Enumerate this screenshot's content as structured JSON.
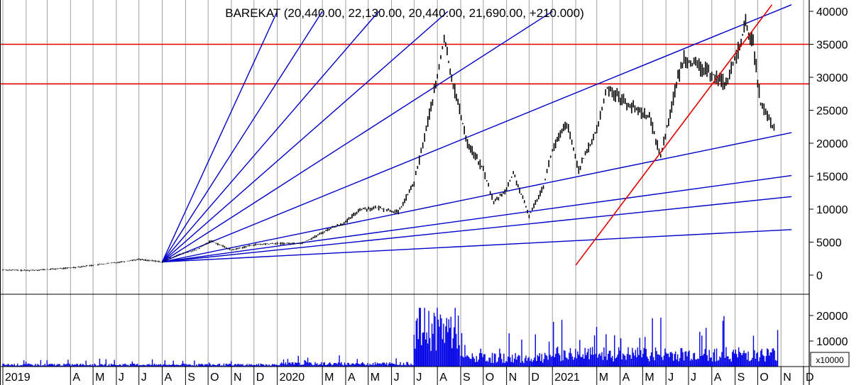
{
  "chart_data": [
    {
      "type": "candlestick",
      "title": "BAREKAT (20,440.00, 22,130.00, 20,440.00, 21,690.00, +210.000)",
      "ohlc": {
        "open": 20440.0,
        "high": 22130.0,
        "low": 20440.0,
        "close": 21690.0,
        "change": 210.0
      },
      "ylim": [
        -3000,
        41000
      ],
      "yticks": [
        0,
        5000,
        10000,
        15000,
        20000,
        25000,
        30000,
        35000,
        40000
      ],
      "ytick_labels": [
        "0",
        "5000",
        "10000",
        "15000",
        "20000",
        "25000",
        "30000",
        "35000",
        "40000"
      ],
      "grid": true,
      "horizontal_lines": [
        35000,
        29000
      ],
      "fan_anchor": {
        "date": "2019-08-01",
        "value": 2000
      },
      "fan_lines": [
        {
          "date": "2020-01-01",
          "value": 40000
        },
        {
          "date": "2020-03-01",
          "value": 40000
        },
        {
          "date": "2020-05-15",
          "value": 40000
        },
        {
          "date": "2020-08-15",
          "value": 40000
        },
        {
          "date": "2021-01-01",
          "value": 40000
        },
        {
          "date": "2021-11-15",
          "value": 41000
        },
        {
          "date": "2021-11-15",
          "value": 21600
        },
        {
          "date": "2021-11-15",
          "value": 15100
        },
        {
          "date": "2021-11-15",
          "value": 11900
        },
        {
          "date": "2021-11-15",
          "value": 6900
        }
      ],
      "red_trendline": [
        {
          "date": "2021-02-01",
          "value": 1500
        },
        {
          "date": "2021-10-20",
          "value": 41000
        }
      ],
      "series": [
        {
          "x": [
            "2019-01-01",
            "2019-02-01",
            "2019-03-01",
            "2019-04-01",
            "2019-05-01",
            "2019-06-01",
            "2019-07-01",
            "2019-08-01",
            "2019-08-20",
            "2019-09-15",
            "2019-10-05",
            "2019-11-01",
            "2019-12-01",
            "2020-01-01",
            "2020-02-01",
            "2020-02-20",
            "2020-03-10",
            "2020-04-01",
            "2020-04-20",
            "2020-05-15",
            "2020-06-10",
            "2020-07-01",
            "2020-07-15",
            "2020-08-01",
            "2020-08-10",
            "2020-08-20",
            "2020-09-10",
            "2020-10-01",
            "2020-10-15",
            "2020-11-01",
            "2020-11-10",
            "2020-12-01",
            "2020-12-20",
            "2021-01-01",
            "2021-01-20",
            "2021-02-05",
            "2021-03-01",
            "2021-03-15",
            "2021-04-10",
            "2021-05-10",
            "2021-05-25",
            "2021-06-15",
            "2021-06-25",
            "2021-07-15",
            "2021-08-01",
            "2021-08-20",
            "2021-09-05",
            "2021-09-15",
            "2021-09-25",
            "2021-10-05",
            "2021-10-25"
          ],
          "values": [
            800,
            700,
            850,
            1100,
            1500,
            1900,
            2400,
            2000,
            3000,
            3800,
            5200,
            3800,
            4600,
            4800,
            4800,
            5800,
            7000,
            8000,
            10000,
            10200,
            9500,
            14000,
            21000,
            30000,
            36000,
            30000,
            20000,
            16000,
            11000,
            13000,
            15500,
            9000,
            13500,
            19000,
            23000,
            16000,
            22000,
            28500,
            26000,
            24000,
            18000,
            29000,
            33000,
            31500,
            30500,
            29000,
            34000,
            38000,
            35000,
            26000,
            21690
          ]
        }
      ],
      "annotations": [
        "x10000"
      ]
    },
    {
      "type": "bar",
      "ylabel": "x10000",
      "yticks": [
        10000,
        20000
      ],
      "ytick_labels": [
        "10000",
        "20000"
      ],
      "ylim": [
        0,
        26000
      ],
      "description_levels": {
        "2019 baseline": 1000,
        "2020 first half": 1500,
        "2020 July–Aug peak": 20000,
        "2020 autumn": 4500,
        "2021": 6500,
        "2021 peaks": 23000
      }
    }
  ],
  "x_axis": {
    "labels": [
      {
        "date": "2019-01-01",
        "text": "2019"
      },
      {
        "date": "2019-04-01",
        "text": "A"
      },
      {
        "date": "2019-05-01",
        "text": "M"
      },
      {
        "date": "2019-06-01",
        "text": "J"
      },
      {
        "date": "2019-07-01",
        "text": "J"
      },
      {
        "date": "2019-08-01",
        "text": "A"
      },
      {
        "date": "2019-09-01",
        "text": "S"
      },
      {
        "date": "2019-10-01",
        "text": "O"
      },
      {
        "date": "2019-11-01",
        "text": "N"
      },
      {
        "date": "2019-12-01",
        "text": "D"
      },
      {
        "date": "2020-01-01",
        "text": "2020"
      },
      {
        "date": "2020-03-01",
        "text": "M"
      },
      {
        "date": "2020-04-01",
        "text": "A"
      },
      {
        "date": "2020-05-01",
        "text": "M"
      },
      {
        "date": "2020-06-01",
        "text": "J"
      },
      {
        "date": "2020-07-01",
        "text": "J"
      },
      {
        "date": "2020-08-01",
        "text": "A"
      },
      {
        "date": "2020-09-01",
        "text": "S"
      },
      {
        "date": "2020-10-01",
        "text": "O"
      },
      {
        "date": "2020-11-01",
        "text": "N"
      },
      {
        "date": "2020-12-01",
        "text": "D"
      },
      {
        "date": "2021-01-01",
        "text": "2021"
      },
      {
        "date": "2021-03-01",
        "text": "M"
      },
      {
        "date": "2021-04-01",
        "text": "A"
      },
      {
        "date": "2021-05-01",
        "text": "M"
      },
      {
        "date": "2021-06-01",
        "text": "J"
      },
      {
        "date": "2021-07-01",
        "text": "J"
      },
      {
        "date": "2021-08-01",
        "text": "A"
      },
      {
        "date": "2021-09-01",
        "text": "S"
      },
      {
        "date": "2021-10-01",
        "text": "O"
      },
      {
        "date": "2021-11-01",
        "text": "N"
      },
      {
        "date": "2021-12-01",
        "text": "D"
      }
    ],
    "extra_gridlines": [
      "2019-02-01",
      "2019-03-01",
      "2020-02-01",
      "2021-02-01"
    ]
  },
  "colors": {
    "price": "#000000",
    "fan": "#0000c8",
    "resistance": "#e00000",
    "trend": "#e00000",
    "volume": "#0000e6",
    "grid": "#a0a0a0"
  }
}
